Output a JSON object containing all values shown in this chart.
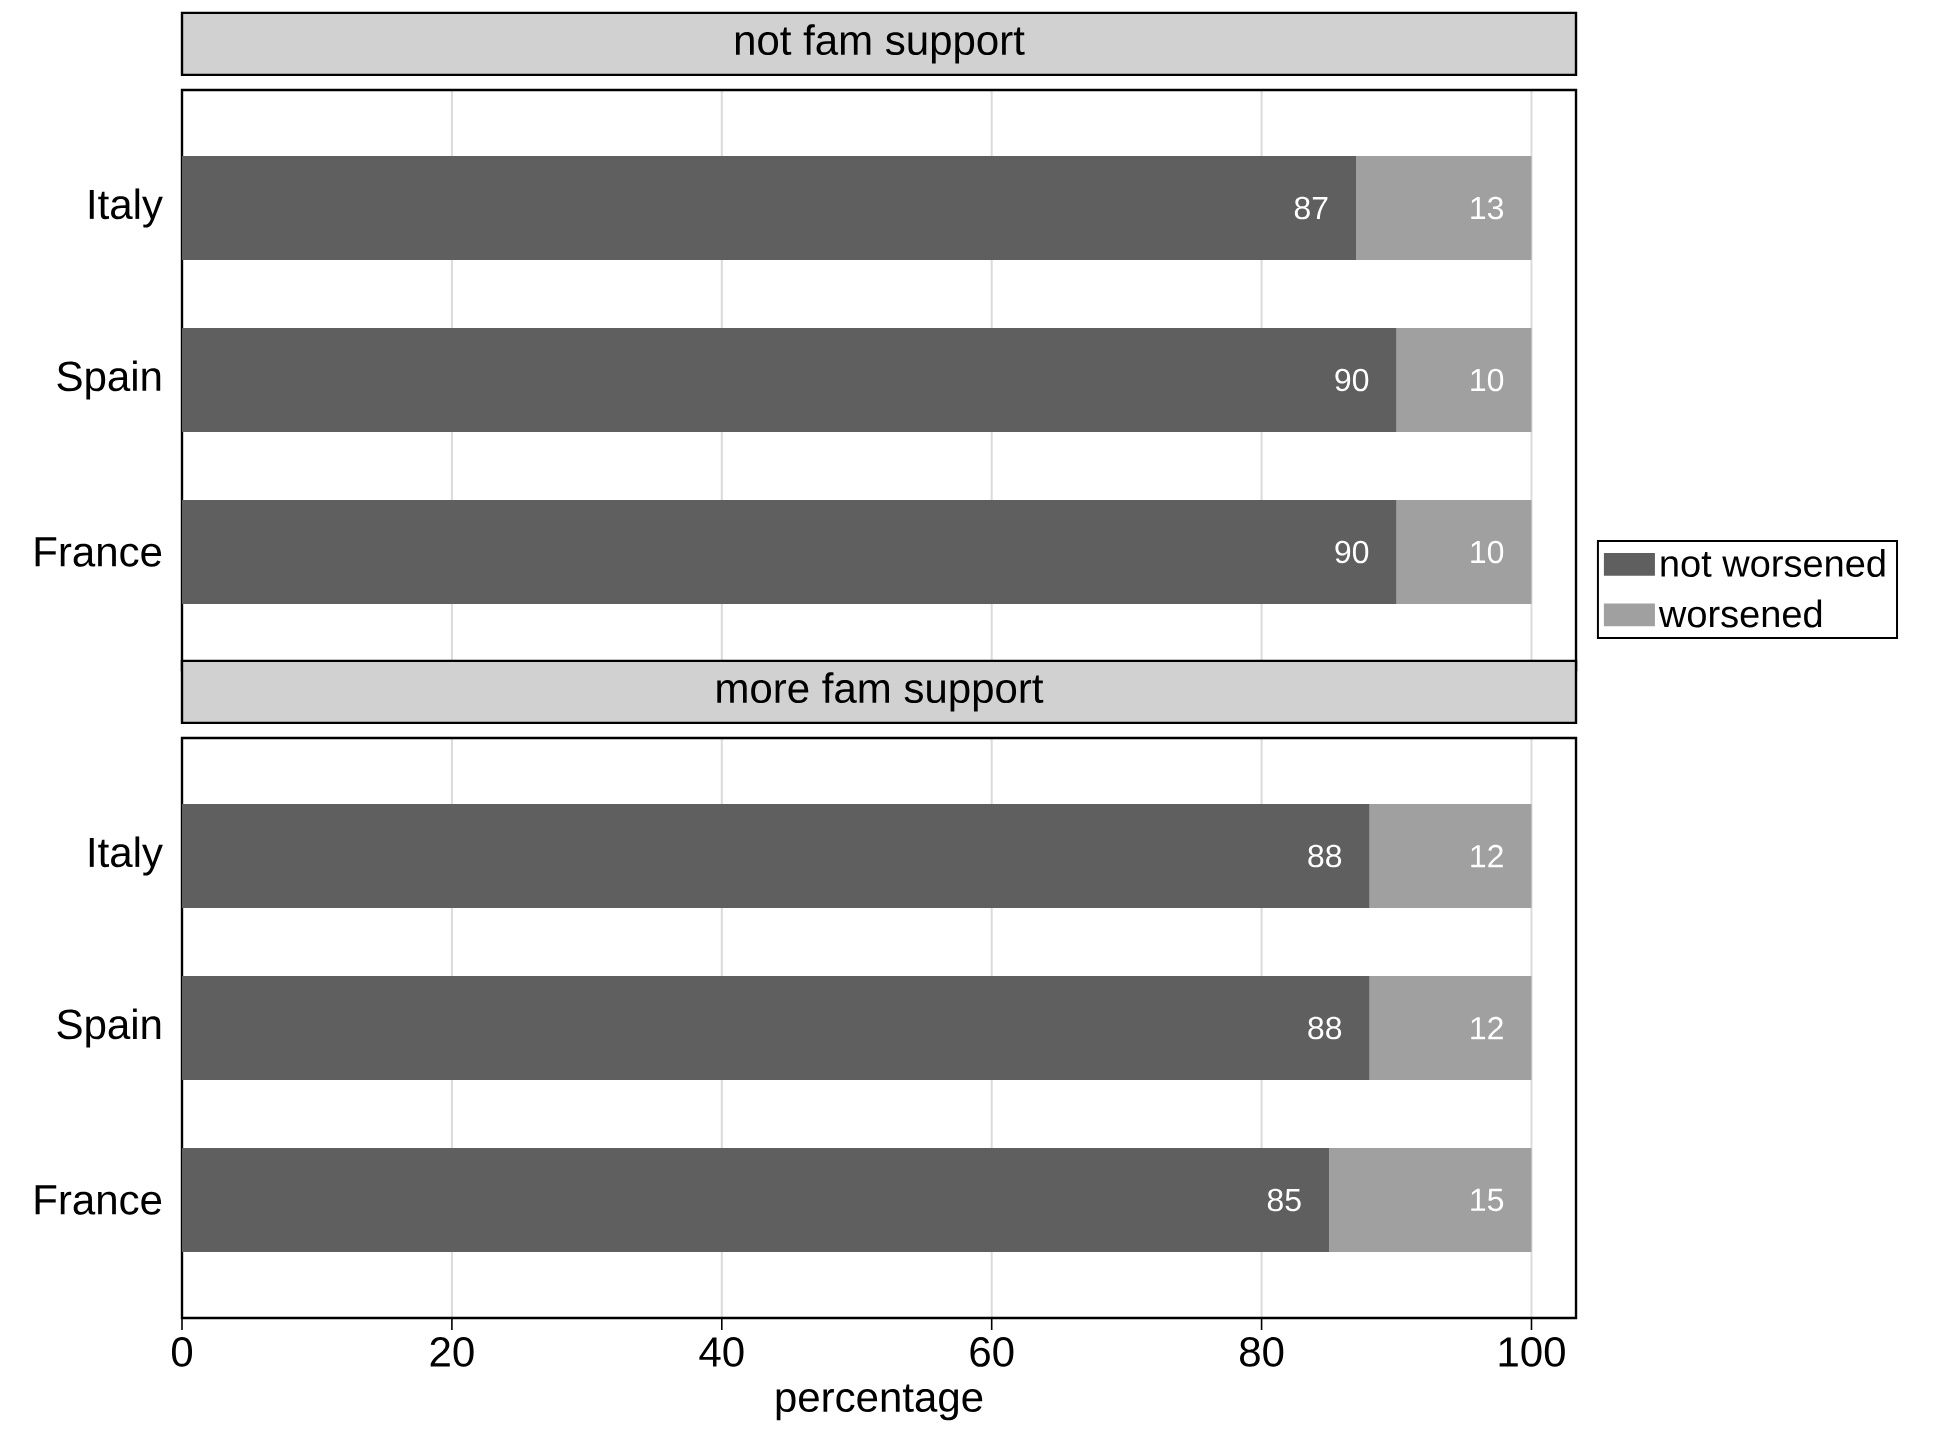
{
  "chart_data": [
    {
      "type": "bar",
      "orientation": "horizontal",
      "stacked": true,
      "title": "not fam support",
      "categories": [
        "Italy",
        "Spain",
        "France"
      ],
      "series": [
        {
          "name": "not worsened",
          "color": "#5f5f5f",
          "values": [
            87,
            90,
            90
          ]
        },
        {
          "name": "worsened",
          "color": "#a0a0a0",
          "values": [
            13,
            10,
            10
          ]
        }
      ],
      "xlim": [
        0,
        103.3
      ],
      "xticks": [
        0,
        20,
        40,
        60,
        80,
        100
      ],
      "grid": "x",
      "data_labels": true,
      "legend": "right",
      "tick_labels": "y"
    },
    {
      "type": "bar",
      "orientation": "horizontal",
      "stacked": true,
      "title": "more fam support",
      "xlabel": "percentage",
      "categories": [
        "Italy",
        "Spain",
        "France"
      ],
      "series": [
        {
          "color": "#5f5f5f",
          "values": [
            88,
            88,
            85
          ]
        },
        {
          "color": "#a0a0a0",
          "values": [
            12,
            12,
            15
          ]
        }
      ],
      "xlim": [
        0,
        103.3
      ],
      "xticks": [
        0,
        20,
        40,
        60,
        80,
        100
      ],
      "grid": "x",
      "data_labels": true
    }
  ]
}
